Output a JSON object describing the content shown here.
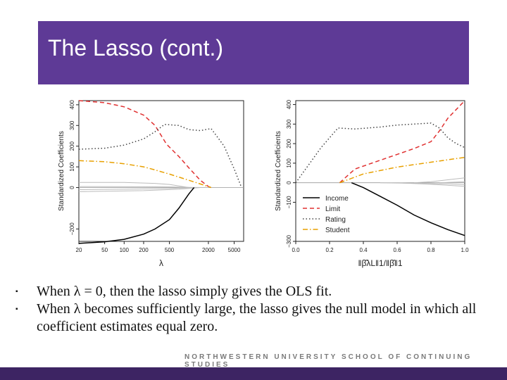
{
  "slide": {
    "title": "The Lasso (cont.)",
    "bullets": [
      {
        "marker": "▪",
        "text": "When λ = 0, then the lasso simply gives the OLS fit."
      },
      {
        "marker": "▪",
        "text": "When λ becomes sufficiently large, the lasso gives the null model in which all coefficient estimates equal zero."
      }
    ],
    "footer": "NORTHWESTERN UNIVERSITY SCHOOL OF CONTINUING STUDIES"
  },
  "colors": {
    "title_bar": "#5e3a96",
    "footer_bar": "#3d2463",
    "income": "#000000",
    "limit": "#e03030",
    "rating": "#444444",
    "student": "#e8a000",
    "others": "#bbbbbb"
  },
  "chart_data": [
    {
      "type": "line",
      "title": "",
      "xlabel": "λ",
      "ylabel": "Standardized Coefficients",
      "xscale": "log",
      "xlim": [
        20,
        7000
      ],
      "ylim": [
        -260,
        420
      ],
      "xticks": [
        20,
        50,
        100,
        200,
        500,
        2000,
        5000
      ],
      "xtick_labels": [
        "20",
        "50",
        "100",
        "200",
        "500",
        "2000",
        "5000"
      ],
      "yticks": [
        -200,
        0,
        100,
        200,
        300,
        400
      ],
      "ytick_labels": [
        "−200",
        "0",
        "100",
        "200",
        "300",
        "400"
      ],
      "series": [
        {
          "name": "Income",
          "style": "solid",
          "color": "#000000",
          "x": [
            20,
            50,
            100,
            200,
            300,
            500,
            700,
            1000,
            1200
          ],
          "y": [
            -270,
            -262,
            -250,
            -225,
            -200,
            -155,
            -100,
            -30,
            0
          ]
        },
        {
          "name": "Limit",
          "style": "dashed",
          "color": "#e03030",
          "x": [
            20,
            50,
            100,
            200,
            300,
            450,
            700,
            1000,
            1500,
            2000,
            2200
          ],
          "y": [
            420,
            410,
            390,
            350,
            300,
            210,
            150,
            95,
            35,
            5,
            0
          ]
        },
        {
          "name": "Rating",
          "style": "dotted",
          "color": "#444444",
          "x": [
            20,
            50,
            100,
            200,
            300,
            420,
            700,
            1000,
            1500,
            2200,
            3500,
            5000,
            6500
          ],
          "y": [
            185,
            190,
            205,
            235,
            270,
            305,
            300,
            280,
            275,
            285,
            200,
            90,
            0
          ]
        },
        {
          "name": "Student",
          "style": "dotdash",
          "color": "#e8a000",
          "x": [
            20,
            50,
            100,
            200,
            300,
            500,
            1000,
            2000,
            2200
          ],
          "y": [
            130,
            125,
            115,
            100,
            85,
            65,
            35,
            5,
            0
          ]
        },
        {
          "name": "Other 1",
          "style": "solid",
          "color": "#bbbbbb",
          "x": [
            20,
            100,
            300,
            500,
            800,
            1000
          ],
          "y": [
            25,
            25,
            20,
            15,
            5,
            0
          ]
        },
        {
          "name": "Other 2",
          "style": "solid",
          "color": "#bbbbbb",
          "x": [
            20,
            100,
            300,
            700,
            1000,
            1500
          ],
          "y": [
            -10,
            -8,
            -6,
            -3,
            -1,
            0
          ]
        },
        {
          "name": "Other 3",
          "style": "solid",
          "color": "#bbbbbb",
          "x": [
            20,
            200,
            500,
            1000,
            2000
          ],
          "y": [
            5,
            4,
            3,
            1,
            0
          ]
        },
        {
          "name": "Other 4",
          "style": "solid",
          "color": "#bbbbbb",
          "x": [
            20,
            200,
            700,
            1500
          ],
          "y": [
            -20,
            -15,
            -8,
            0
          ]
        }
      ]
    },
    {
      "type": "line",
      "title": "",
      "xlabel": "‖β̂λL‖1/‖β̂‖1",
      "ylabel": "Standardized Coefficients",
      "xlim": [
        0,
        1
      ],
      "ylim": [
        -300,
        420
      ],
      "xticks": [
        0.0,
        0.2,
        0.4,
        0.6,
        0.8,
        1.0
      ],
      "xtick_labels": [
        "0.0",
        "0.2",
        "0.4",
        "0.6",
        "0.8",
        "1.0"
      ],
      "yticks": [
        -300,
        -100,
        0,
        100,
        200,
        300,
        400
      ],
      "ytick_labels": [
        "−300",
        "−100",
        "0",
        "100",
        "200",
        "300",
        "400"
      ],
      "legend": {
        "position": "bottom-left",
        "entries": [
          "Income",
          "Limit",
          "Rating",
          "Student"
        ]
      },
      "series": [
        {
          "name": "Income",
          "style": "solid",
          "color": "#000000",
          "x": [
            0.33,
            0.4,
            0.5,
            0.6,
            0.7,
            0.8,
            0.9,
            1.0
          ],
          "y": [
            0,
            -25,
            -70,
            -115,
            -165,
            -205,
            -240,
            -270
          ]
        },
        {
          "name": "Limit",
          "style": "dashed",
          "color": "#e03030",
          "x": [
            0.26,
            0.35,
            0.5,
            0.6,
            0.7,
            0.8,
            0.85,
            0.9,
            1.0
          ],
          "y": [
            0,
            70,
            115,
            145,
            175,
            210,
            265,
            330,
            420
          ]
        },
        {
          "name": "Rating",
          "style": "dotted",
          "color": "#444444",
          "x": [
            0.0,
            0.05,
            0.15,
            0.25,
            0.35,
            0.5,
            0.6,
            0.7,
            0.8,
            0.85,
            0.9,
            0.95,
            1.0
          ],
          "y": [
            0,
            60,
            180,
            280,
            275,
            285,
            295,
            300,
            305,
            280,
            230,
            200,
            180
          ]
        },
        {
          "name": "Student",
          "style": "dotdash",
          "color": "#e8a000",
          "x": [
            0.26,
            0.4,
            0.6,
            0.8,
            1.0
          ],
          "y": [
            0,
            45,
            80,
            105,
            130
          ]
        },
        {
          "name": "Other 1",
          "style": "solid",
          "color": "#bbbbbb",
          "x": [
            0.7,
            0.8,
            0.9,
            1.0
          ],
          "y": [
            0,
            5,
            15,
            25
          ]
        },
        {
          "name": "Other 2",
          "style": "solid",
          "color": "#bbbbbb",
          "x": [
            0.5,
            0.7,
            0.9,
            1.0
          ],
          "y": [
            0,
            -3,
            -6,
            -10
          ]
        },
        {
          "name": "Other 3",
          "style": "solid",
          "color": "#bbbbbb",
          "x": [
            0.85,
            1.0
          ],
          "y": [
            0,
            5
          ]
        },
        {
          "name": "Other 4",
          "style": "solid",
          "color": "#bbbbbb",
          "x": [
            0.6,
            0.8,
            1.0
          ],
          "y": [
            0,
            -8,
            -18
          ]
        }
      ]
    }
  ]
}
